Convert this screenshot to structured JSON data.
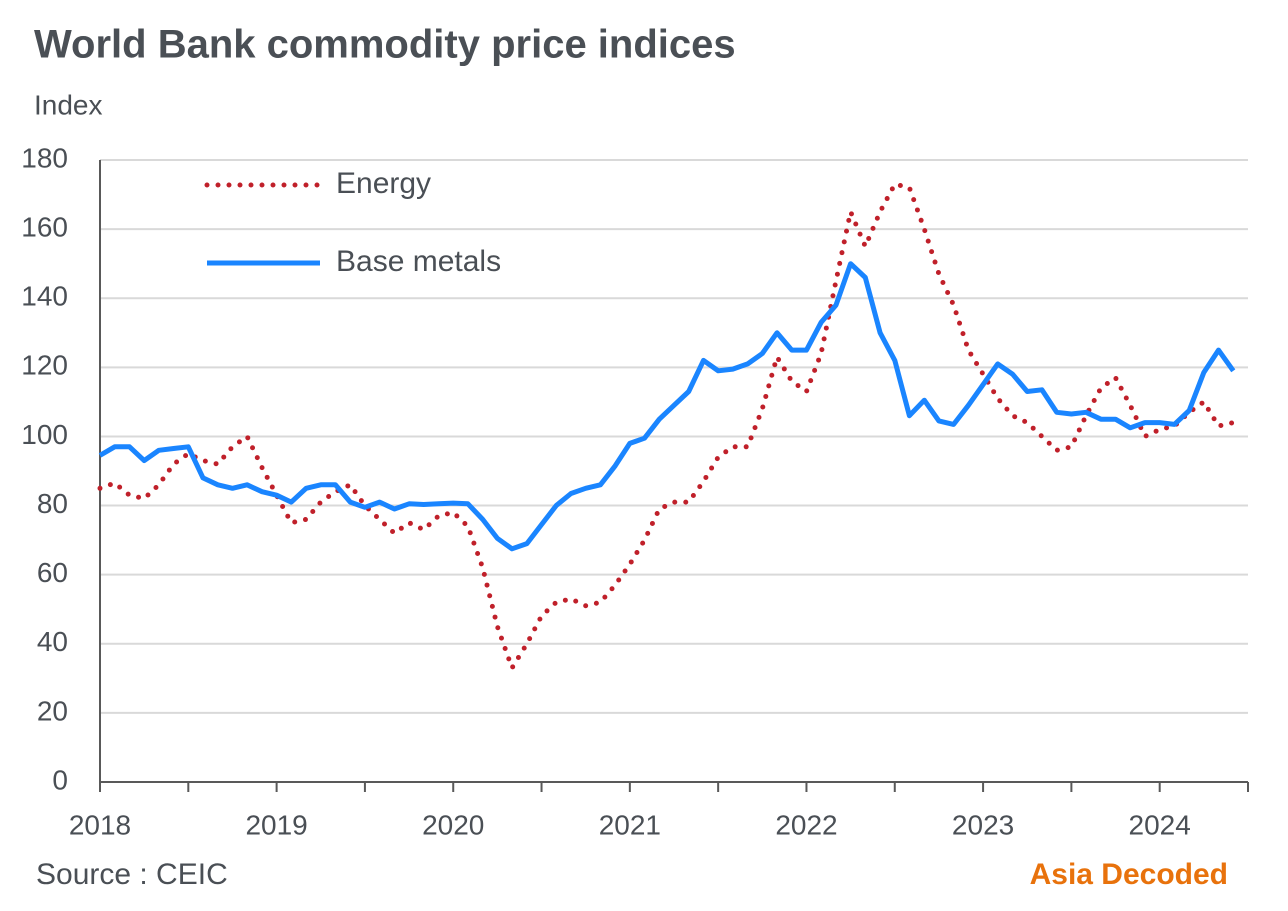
{
  "chart_data": {
    "type": "line",
    "title": "World Bank commodity price indices",
    "y_label": "Index",
    "source": "Source : CEIC",
    "brand": "Asia Decoded",
    "x": [
      2018,
      2018.083,
      2018.167,
      2018.25,
      2018.333,
      2018.417,
      2018.5,
      2018.583,
      2018.667,
      2018.75,
      2018.833,
      2018.917,
      2019,
      2019.083,
      2019.167,
      2019.25,
      2019.333,
      2019.417,
      2019.5,
      2019.583,
      2019.667,
      2019.75,
      2019.833,
      2019.917,
      2020,
      2020.083,
      2020.167,
      2020.25,
      2020.333,
      2020.417,
      2020.5,
      2020.583,
      2020.667,
      2020.75,
      2020.833,
      2020.917,
      2021,
      2021.083,
      2021.167,
      2021.25,
      2021.333,
      2021.417,
      2021.5,
      2021.583,
      2021.667,
      2021.75,
      2021.833,
      2021.917,
      2022,
      2022.083,
      2022.167,
      2022.25,
      2022.333,
      2022.417,
      2022.5,
      2022.583,
      2022.667,
      2022.75,
      2022.833,
      2022.917,
      2023,
      2023.083,
      2023.167,
      2023.25,
      2023.333,
      2023.417,
      2023.5,
      2023.583,
      2023.667,
      2023.75,
      2023.833,
      2023.917,
      2024,
      2024.083,
      2024.167,
      2024.25,
      2024.333,
      2024.417
    ],
    "series": [
      {
        "name": "Energy",
        "color": "#c0202a",
        "style": "dotted",
        "values": [
          85,
          86.5,
          83,
          82,
          86,
          92,
          95,
          93,
          92,
          97,
          100,
          91,
          83,
          75,
          76,
          81,
          84,
          86,
          80,
          76,
          72,
          75,
          73,
          77,
          78,
          74,
          62,
          45,
          33,
          40,
          48,
          52,
          53,
          51,
          52,
          57,
          63,
          70,
          79,
          81,
          81,
          87,
          94,
          97,
          97,
          108,
          123,
          116,
          113,
          124,
          145,
          165,
          155,
          165,
          173,
          172,
          160,
          147,
          138,
          125,
          118,
          111,
          106,
          104,
          100,
          96,
          97,
          106,
          114,
          117,
          109,
          100,
          102,
          103,
          107,
          110,
          103,
          104
        ]
      },
      {
        "name": "Base metals",
        "color": "#1a85ff",
        "style": "solid",
        "values": [
          94.5,
          97,
          97,
          93,
          96,
          96.5,
          97,
          88,
          86,
          85,
          86,
          84,
          83,
          81,
          85,
          86,
          86,
          81,
          79.5,
          81,
          79,
          80.5,
          80.3,
          80.5,
          80.7,
          80.5,
          76,
          70.5,
          67.5,
          69,
          74.5,
          80,
          83.5,
          85,
          86,
          91.5,
          98,
          99.5,
          105,
          109,
          113,
          122,
          119,
          119.5,
          121,
          124,
          130,
          125,
          125,
          133,
          138,
          150,
          146,
          130,
          122,
          106,
          110.5,
          104.5,
          103.5,
          109,
          115,
          121,
          118,
          113,
          113.5,
          107,
          106.5,
          107,
          105,
          105,
          102.5,
          104,
          104,
          103.5,
          107.5,
          118.5,
          125,
          119
        ]
      }
    ],
    "xlim": [
      2018,
      2024.5
    ],
    "xticks": [
      2018,
      2019,
      2020,
      2021,
      2022,
      2023,
      2024
    ],
    "xminorticks": [
      2018.5,
      2019.5,
      2020.5,
      2021.5,
      2022.5,
      2023.5,
      2024.5
    ],
    "ylim": [
      0,
      180
    ],
    "yticks": [
      0,
      20,
      40,
      60,
      80,
      100,
      120,
      140,
      160,
      180
    ],
    "grid": true,
    "legend": "upper left"
  }
}
